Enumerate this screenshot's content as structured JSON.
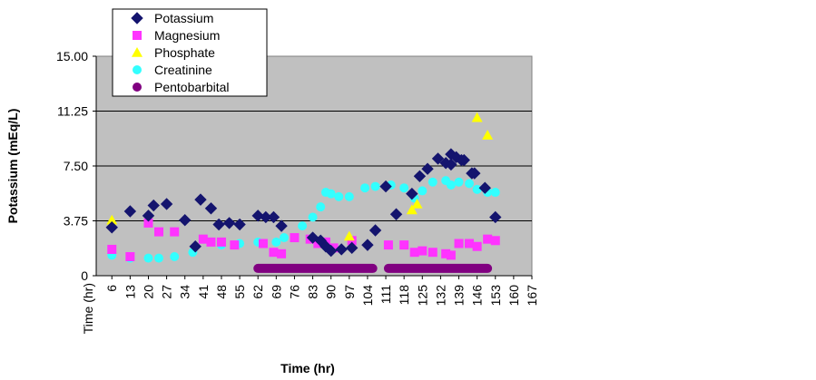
{
  "chart_data": {
    "type": "scatter",
    "title": "",
    "xlabel": "Time (hr)",
    "ylabel": "Potassium (mEq/L)",
    "x_tick_header": "Time (hr)",
    "ylim": [
      0,
      15
    ],
    "y_ticks": [
      "0",
      "3.75",
      "7.50",
      "11.25",
      "15.00"
    ],
    "x_categories": [
      "6",
      "13",
      "20",
      "27",
      "34",
      "41",
      "48",
      "55",
      "62",
      "69",
      "76",
      "83",
      "90",
      "97",
      "104",
      "111",
      "118",
      "125",
      "132",
      "139",
      "146",
      "153",
      "160",
      "167"
    ],
    "xlim": [
      0,
      167
    ],
    "grid": true,
    "plot_background": "#c0c0c0",
    "legend_position": "top-left",
    "series": [
      {
        "name": "Potassium",
        "marker": "diamond",
        "color": "#14146e",
        "x": [
          6,
          13,
          20,
          22,
          27,
          34,
          38,
          40,
          44,
          47,
          51,
          55,
          62,
          65,
          68,
          71,
          83,
          86,
          88,
          90,
          94,
          98,
          104,
          107,
          111,
          115,
          121,
          124,
          127,
          131,
          134,
          136,
          136,
          138,
          140,
          141,
          144,
          145,
          149,
          153
        ],
        "y": [
          3.3,
          4.4,
          4.1,
          4.8,
          4.9,
          3.8,
          2.0,
          5.2,
          4.6,
          3.5,
          3.6,
          3.5,
          4.1,
          4.0,
          4.0,
          3.4,
          2.6,
          2.4,
          2.0,
          1.7,
          1.8,
          1.9,
          2.1,
          3.1,
          6.1,
          4.2,
          5.6,
          6.8,
          7.3,
          8.0,
          7.7,
          8.3,
          7.6,
          8.1,
          7.9,
          7.9,
          7.0,
          7.0,
          6.0,
          4.0
        ]
      },
      {
        "name": "Magnesium",
        "marker": "square",
        "color": "#ff33ff",
        "x": [
          6,
          13,
          20,
          24,
          30,
          41,
          44,
          48,
          53,
          64,
          68,
          71,
          76,
          82,
          85,
          88,
          91,
          98,
          112,
          118,
          122,
          125,
          129,
          134,
          136,
          139,
          143,
          146,
          150,
          153
        ],
        "y": [
          1.8,
          1.3,
          3.6,
          3.0,
          3.0,
          2.5,
          2.3,
          2.3,
          2.1,
          2.2,
          1.6,
          1.5,
          2.6,
          2.5,
          2.2,
          2.3,
          1.9,
          2.4,
          2.1,
          2.1,
          1.6,
          1.7,
          1.6,
          1.5,
          1.4,
          2.2,
          2.2,
          2.0,
          2.5,
          2.4
        ]
      },
      {
        "name": "Phosphate",
        "marker": "triangle",
        "color": "#ffff00",
        "x": [
          6,
          97,
          121,
          123,
          146,
          150
        ],
        "y": [
          3.8,
          2.7,
          4.5,
          4.9,
          10.8,
          9.6
        ],
        "show_points": [
          true,
          true,
          true,
          true,
          true,
          true
        ]
      },
      {
        "name": "Creatinine",
        "marker": "circle",
        "color": "#33ffff",
        "x": [
          6,
          13,
          20,
          24,
          30,
          37,
          48,
          55,
          62,
          69,
          72,
          79,
          83,
          86,
          88,
          90,
          93,
          97,
          103,
          107,
          113,
          118,
          122,
          125,
          129,
          134,
          136,
          139,
          143,
          146,
          150,
          153
        ],
        "y": [
          1.4,
          1.2,
          1.2,
          1.2,
          1.3,
          1.6,
          2.1,
          2.2,
          2.3,
          2.3,
          2.6,
          3.4,
          4.0,
          4.7,
          5.7,
          5.6,
          5.4,
          5.4,
          6.0,
          6.1,
          6.2,
          6.0,
          5.3,
          5.8,
          6.4,
          6.5,
          6.2,
          6.4,
          6.3,
          5.9,
          5.7,
          5.7
        ]
      },
      {
        "name": "Pentobarbital",
        "marker": "circle",
        "color": "#800080",
        "segments": [
          [
            62,
            106
          ],
          [
            112,
            150
          ]
        ],
        "y": 0.5
      }
    ]
  }
}
